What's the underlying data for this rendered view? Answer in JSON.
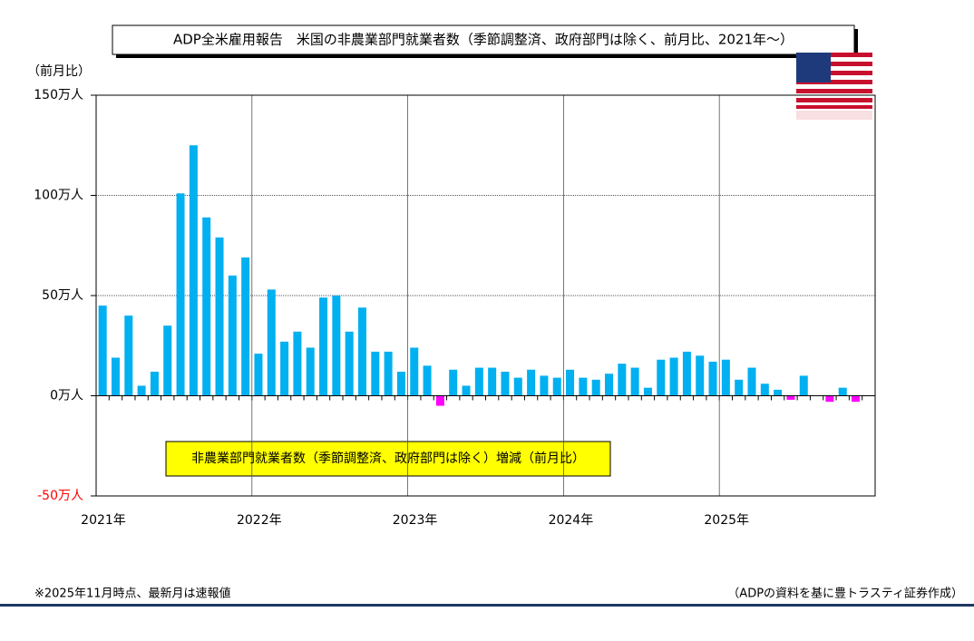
{
  "chart_data": {
    "type": "bar",
    "title": "ADP全米雇用報告　米国の非農業部門就業者数（季節調整済、政府部門は除く、前月比、2021年～）",
    "y_label": "（前月比）",
    "categories": [
      "2021年",
      null,
      null,
      null,
      null,
      null,
      null,
      null,
      null,
      null,
      null,
      null,
      "2022年",
      null,
      null,
      null,
      null,
      null,
      null,
      null,
      null,
      null,
      null,
      null,
      "2023年",
      null,
      null,
      null,
      null,
      null,
      null,
      null,
      null,
      null,
      null,
      null,
      "2024年",
      null,
      null,
      null,
      null,
      null,
      null,
      null,
      null,
      null,
      null,
      null,
      "2025年",
      null,
      null,
      null,
      null,
      null,
      null,
      null,
      null,
      null,
      null
    ],
    "series": [
      {
        "name": "非農業部門就業者数（季節調整済、政府部門は除く）増減（前月比）",
        "color": "#00b0f0",
        "negative_color": "#ff00ff",
        "values": [
          45,
          19,
          40,
          5,
          12,
          35,
          101,
          125,
          89,
          79,
          60,
          69,
          21,
          53,
          27,
          32,
          24,
          49,
          50,
          32,
          44,
          22,
          22,
          12,
          24,
          15,
          -5,
          13,
          5,
          14,
          14,
          12,
          9,
          13,
          10,
          9,
          13,
          9,
          8,
          11,
          16,
          14,
          4,
          18,
          19,
          22,
          20,
          17,
          18,
          8,
          14,
          6,
          3,
          -2,
          10,
          0,
          -3,
          4,
          -3
        ]
      }
    ],
    "ylim": [
      -50,
      150
    ],
    "yticks": [
      {
        "value": -50,
        "label": "-50万人"
      },
      {
        "value": 0,
        "label": "0万人"
      },
      {
        "value": 50,
        "label": "50万人"
      },
      {
        "value": 100,
        "label": "100万人"
      },
      {
        "value": 150,
        "label": "150万人"
      }
    ],
    "negative_tick_color": "#ff0000",
    "grid": true,
    "footnote": "※2025年11月時点、最新月は速報値",
    "source": "（ADPの資料を基に豊トラスティ証券作成）"
  }
}
